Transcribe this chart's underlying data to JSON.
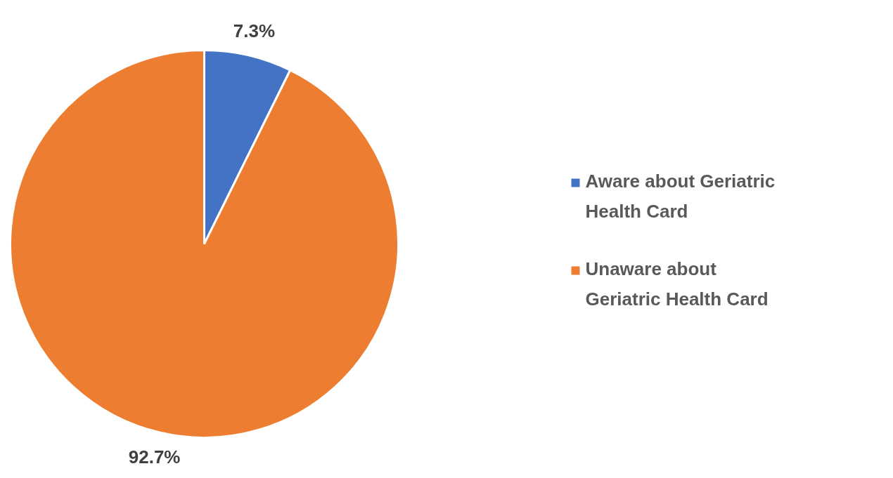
{
  "chart_data": {
    "type": "pie",
    "categories": [
      "Aware about Geriatric Health Card",
      "Unaware about Geriatric Health Card"
    ],
    "values": [
      7.3,
      92.7
    ],
    "colors": [
      "#4472c4",
      "#ed7d31"
    ],
    "value_labels": [
      "7.3%",
      "92.7%"
    ],
    "legend": "right"
  }
}
